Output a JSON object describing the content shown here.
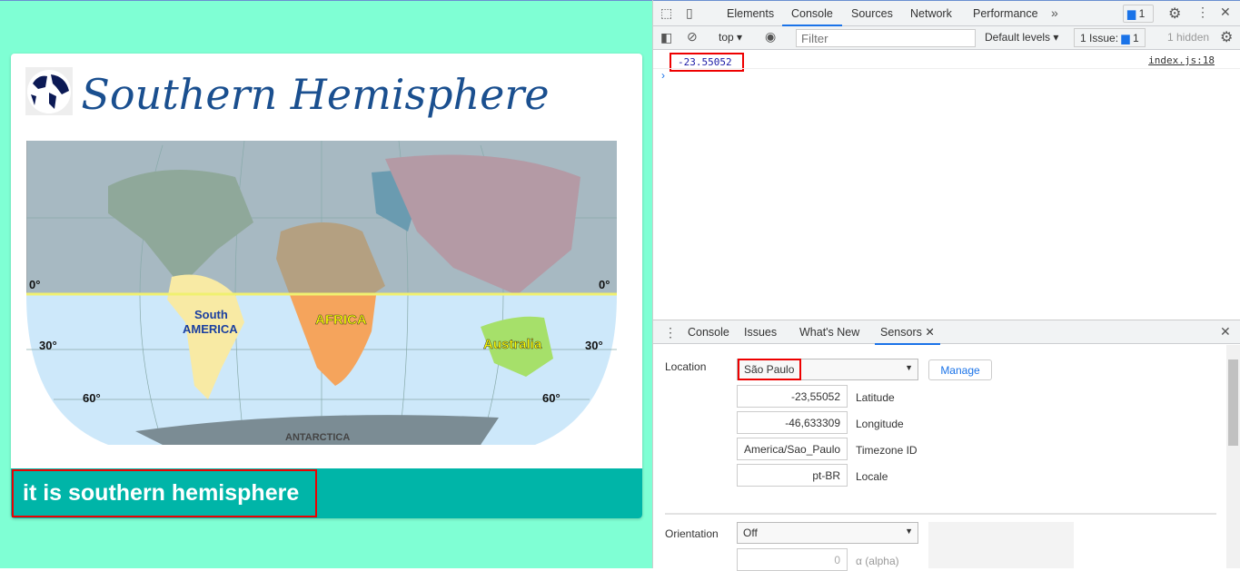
{
  "page": {
    "title": "Southern Hemisphere",
    "result_text": "it is southern hemisphere",
    "map_labels": {
      "equator_left": "0°",
      "equator_right": "0°",
      "lat30_left": "30°",
      "lat30_right": "30°",
      "lat60_left": "60°",
      "lat60_right": "60°",
      "south_america_1": "South",
      "south_america_2": "AMERICA",
      "africa": "AFRICA",
      "australia": "Australia",
      "antarctica": "ANTARCTICA"
    },
    "colors": {
      "background": "#7fffd4",
      "bar": "#00b5a8",
      "title": "#1a4f8f"
    }
  },
  "devtools": {
    "tabs": [
      "Elements",
      "Console",
      "Sources",
      "Network",
      "Performance"
    ],
    "active_tab": "Console",
    "issues_badge": "1",
    "context": "top",
    "filter_placeholder": "Filter",
    "levels": "Default levels",
    "issues_label": "1 Issue:",
    "issues_count": "1",
    "hidden": "1 hidden",
    "console_message": "-23.55052",
    "console_source": "index.js:18",
    "drawer_tabs": [
      "Console",
      "Issues",
      "What's New",
      "Sensors"
    ],
    "sensors": {
      "location_label": "Location",
      "location_value": "São Paulo",
      "manage": "Manage",
      "latitude": "-23,55052",
      "latitude_label": "Latitude",
      "longitude": "-46,633309",
      "longitude_label": "Longitude",
      "timezone": "America/Sao_Paulo",
      "timezone_label": "Timezone ID",
      "locale": "pt-BR",
      "locale_label": "Locale",
      "orientation_label": "Orientation",
      "orientation_value": "Off",
      "alpha": "0",
      "alpha_label": "α (alpha)"
    }
  }
}
